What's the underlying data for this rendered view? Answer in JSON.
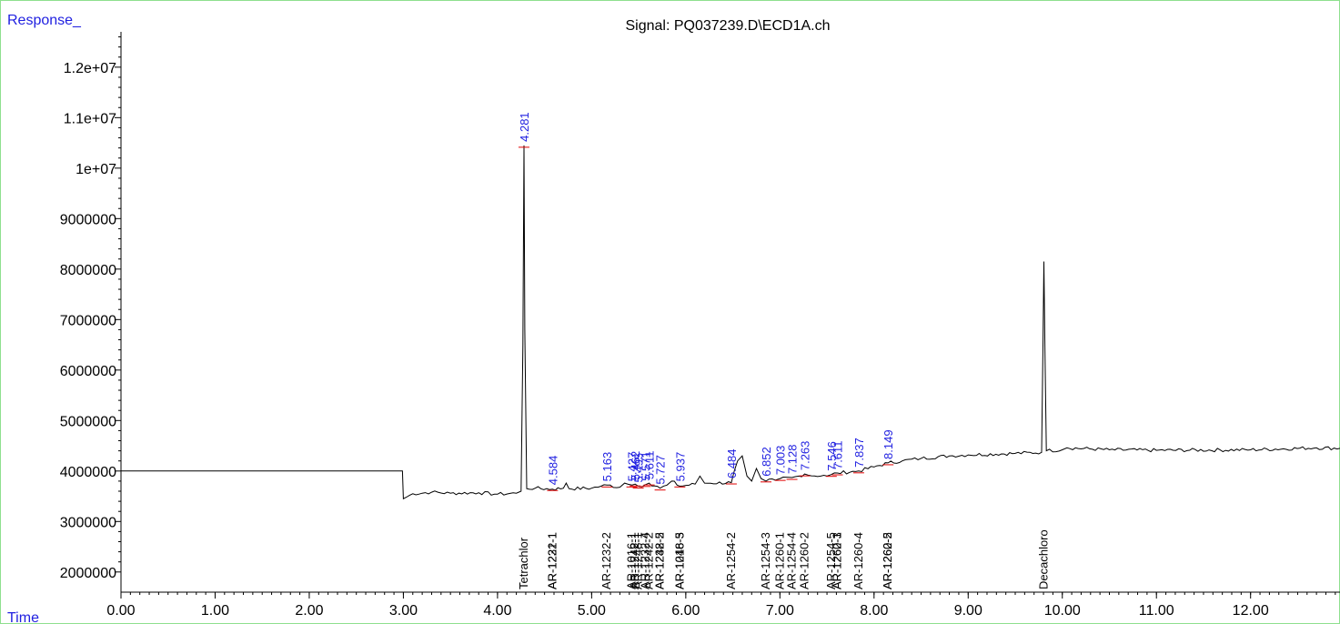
{
  "chart_data": {
    "type": "line",
    "title": "Signal: PQ037239.D\\ECD1A.ch",
    "ylabel": "Response_",
    "xlabel": "Time",
    "xlim": [
      0,
      12.95
    ],
    "ylim": [
      1600000,
      12700000
    ],
    "x_ticks": [
      0,
      1,
      2,
      3,
      4,
      5,
      6,
      7,
      8,
      9,
      10,
      11,
      12
    ],
    "x_tick_labels": [
      "0.00",
      "1.00",
      "2.00",
      "3.00",
      "4.00",
      "5.00",
      "6.00",
      "7.00",
      "8.00",
      "9.00",
      "10.00",
      "11.00",
      "12.00"
    ],
    "y_ticks": [
      2000000,
      3000000,
      4000000,
      5000000,
      6000000,
      7000000,
      8000000,
      9000000,
      10000000,
      11000000,
      12000000
    ],
    "y_tick_labels": [
      "2000000",
      "3000000",
      "4000000",
      "5000000",
      "6000000",
      "7000000",
      "8000000",
      "9000000",
      "1e+07",
      "1.1e+07",
      "1.2e+07"
    ],
    "colors": {
      "signal": "#000000",
      "baseline": "#e00000",
      "peak_label": "#1f1fe0",
      "frame": "#8fe08f"
    },
    "series": [
      {
        "values": [
          [
            0,
            4000000
          ],
          [
            2.99,
            4000000
          ],
          [
            3.0,
            3450000
          ],
          [
            3.1,
            3550000
          ],
          [
            3.3,
            3580000
          ],
          [
            3.5,
            3560000
          ],
          [
            3.8,
            3570000
          ],
          [
            4.0,
            3540000
          ],
          [
            4.2,
            3560000
          ],
          [
            4.25,
            3600000
          ],
          [
            4.27,
            6500000
          ],
          [
            4.281,
            10450000
          ],
          [
            4.29,
            6800000
          ],
          [
            4.31,
            3650000
          ],
          [
            4.4,
            3660000
          ],
          [
            4.584,
            3640000
          ],
          [
            4.7,
            3660000
          ],
          [
            4.73,
            3760000
          ],
          [
            4.76,
            3650000
          ],
          [
            5.0,
            3660000
          ],
          [
            5.1,
            3700000
          ],
          [
            5.163,
            3720000
          ],
          [
            5.3,
            3680000
          ],
          [
            5.35,
            3760000
          ],
          [
            5.427,
            3720000
          ],
          [
            5.462,
            3740000
          ],
          [
            5.495,
            3700000
          ],
          [
            5.571,
            3730000
          ],
          [
            5.611,
            3760000
          ],
          [
            5.727,
            3660000
          ],
          [
            5.8,
            3720000
          ],
          [
            5.85,
            3800000
          ],
          [
            5.937,
            3700000
          ],
          [
            6.1,
            3740000
          ],
          [
            6.15,
            3900000
          ],
          [
            6.2,
            3760000
          ],
          [
            6.484,
            3770000
          ],
          [
            6.55,
            4200000
          ],
          [
            6.6,
            4300000
          ],
          [
            6.65,
            3900000
          ],
          [
            6.7,
            3800000
          ],
          [
            6.75,
            4050000
          ],
          [
            6.8,
            3850000
          ],
          [
            6.852,
            3800000
          ],
          [
            6.95,
            3820000
          ],
          [
            7.003,
            3850000
          ],
          [
            7.128,
            3870000
          ],
          [
            7.2,
            3900000
          ],
          [
            7.263,
            3940000
          ],
          [
            7.3,
            3920000
          ],
          [
            7.5,
            3900000
          ],
          [
            7.546,
            3930000
          ],
          [
            7.611,
            3960000
          ],
          [
            7.837,
            4000000
          ],
          [
            8.0,
            4080000
          ],
          [
            8.149,
            4160000
          ],
          [
            8.3,
            4200000
          ],
          [
            8.5,
            4250000
          ],
          [
            8.8,
            4300000
          ],
          [
            9.0,
            4320000
          ],
          [
            9.5,
            4350000
          ],
          [
            9.78,
            4370000
          ],
          [
            9.795,
            6500000
          ],
          [
            9.804,
            8150000
          ],
          [
            9.815,
            6500000
          ],
          [
            9.83,
            4400000
          ],
          [
            10.0,
            4420000
          ],
          [
            10.05,
            4460000
          ],
          [
            10.5,
            4420000
          ],
          [
            11.0,
            4410000
          ],
          [
            12.0,
            4420000
          ],
          [
            12.7,
            4460000
          ],
          [
            12.95,
            4450000
          ]
        ]
      }
    ],
    "peak_labels": [
      {
        "x": 4.281,
        "y": 10450000,
        "text": "4.281"
      },
      {
        "x": 4.584,
        "y": 3650000,
        "text": "4.584"
      },
      {
        "x": 5.163,
        "y": 3720000,
        "text": "5.163"
      },
      {
        "x": 5.427,
        "y": 3720000,
        "text": "5.427"
      },
      {
        "x": 5.462,
        "y": 3740000,
        "text": "5.462"
      },
      {
        "x": 5.495,
        "y": 3700000,
        "text": "5.495"
      },
      {
        "x": 5.571,
        "y": 3730000,
        "text": "5.571"
      },
      {
        "x": 5.611,
        "y": 3760000,
        "text": "5.611"
      },
      {
        "x": 5.727,
        "y": 3660000,
        "text": "5.727"
      },
      {
        "x": 5.937,
        "y": 3720000,
        "text": "5.937"
      },
      {
        "x": 6.484,
        "y": 3780000,
        "text": "6.484"
      },
      {
        "x": 6.852,
        "y": 3820000,
        "text": "6.852"
      },
      {
        "x": 7.003,
        "y": 3850000,
        "text": "7.003"
      },
      {
        "x": 7.128,
        "y": 3870000,
        "text": "7.128"
      },
      {
        "x": 7.263,
        "y": 3940000,
        "text": "7.263"
      },
      {
        "x": 7.546,
        "y": 3930000,
        "text": "7.546"
      },
      {
        "x": 7.611,
        "y": 3960000,
        "text": "7.611"
      },
      {
        "x": 7.837,
        "y": 4000000,
        "text": "7.837"
      },
      {
        "x": 8.149,
        "y": 4160000,
        "text": "8.149"
      }
    ],
    "compound_labels": [
      {
        "x": 4.281,
        "text": "Tetrachlor"
      },
      {
        "x": 4.584,
        "text": "AR-1221-1"
      },
      {
        "x": 4.584,
        "text": "AR-1232-1"
      },
      {
        "x": 5.163,
        "text": "AR-1232-2"
      },
      {
        "x": 5.427,
        "text": "AR-1016-1"
      },
      {
        "x": 5.462,
        "text": "AR-1242-1"
      },
      {
        "x": 5.495,
        "text": "AR-1248-1"
      },
      {
        "x": 5.571,
        "text": "AR-1232-4"
      },
      {
        "x": 5.611,
        "text": "AR-1242-2"
      },
      {
        "x": 5.727,
        "text": "AR-1232-5"
      },
      {
        "x": 5.727,
        "text": "AR-1248-2"
      },
      {
        "x": 5.937,
        "text": "AR-1016-5"
      },
      {
        "x": 5.937,
        "text": "AR-1248-3"
      },
      {
        "x": 6.484,
        "text": "AR-1254-2"
      },
      {
        "x": 6.852,
        "text": "AR-1254-3"
      },
      {
        "x": 7.003,
        "text": "AR-1260-1"
      },
      {
        "x": 7.128,
        "text": "AR-1254-4"
      },
      {
        "x": 7.263,
        "text": "AR-1260-2"
      },
      {
        "x": 7.546,
        "text": "AR-1254-5"
      },
      {
        "x": 7.611,
        "text": "AR-1260-3"
      },
      {
        "x": 7.611,
        "text": "AR-1262-1"
      },
      {
        "x": 7.837,
        "text": "AR-1260-4"
      },
      {
        "x": 8.149,
        "text": "AR-1260-5"
      },
      {
        "x": 8.149,
        "text": "AR-1262-2"
      },
      {
        "x": 9.804,
        "text": "Decachloro"
      }
    ]
  }
}
